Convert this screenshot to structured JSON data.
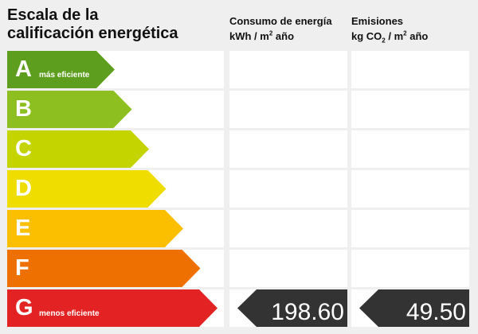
{
  "title": {
    "line1": "Escala de la",
    "line2": "calificación energética"
  },
  "columns": {
    "consumo": {
      "line1": "Consumo de energía",
      "line2_pre": "kWh / m",
      "line2_sup": "2",
      "line2_post": " año"
    },
    "emisiones": {
      "line1": "Emisiones",
      "line2_pre": "kg CO",
      "line2_sub": "2",
      "line2_mid": " / m",
      "line2_sup": "2",
      "line2_post": " año"
    }
  },
  "ratings": [
    {
      "letter": "A",
      "sublabel": "más eficiente",
      "color": "#5e9e1f"
    },
    {
      "letter": "B",
      "sublabel": "",
      "color": "#8cbf1f"
    },
    {
      "letter": "C",
      "sublabel": "",
      "color": "#c3d400"
    },
    {
      "letter": "D",
      "sublabel": "",
      "color": "#f0dd00"
    },
    {
      "letter": "E",
      "sublabel": "",
      "color": "#fbbf00"
    },
    {
      "letter": "F",
      "sublabel": "",
      "color": "#ee7000"
    },
    {
      "letter": "G",
      "sublabel": "menos eficiente",
      "color": "#e32323"
    }
  ],
  "result": {
    "rating": "G",
    "consumo": "198.60",
    "emisiones": "49.50",
    "marker_color": "#333333"
  }
}
